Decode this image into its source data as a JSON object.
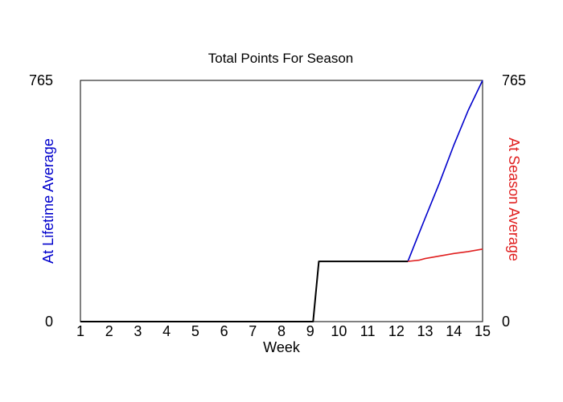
{
  "chart_data": {
    "type": "line",
    "title": "Total Points For Season",
    "xlabel": "Week",
    "ylabel_left": "At Lifetime Average",
    "ylabel_right": "At Season Average",
    "xlim": [
      1,
      15
    ],
    "ylim": [
      0,
      765
    ],
    "x_ticks": [
      "1",
      "2",
      "3",
      "4",
      "5",
      "6",
      "7",
      "8",
      "9",
      "10",
      "11",
      "12",
      "13",
      "14",
      "15"
    ],
    "y_ticks_left": [
      "0",
      "765"
    ],
    "y_ticks_right": [
      "0",
      "765"
    ],
    "grid": false,
    "colors": {
      "left_label": "#0000cc",
      "right_label": "#e02020",
      "actual": "#000000",
      "lifetime": "#0000cc",
      "season": "#e02020"
    },
    "series": [
      {
        "key": "actual",
        "x": [
          1,
          9.1,
          9.3,
          12.4
        ],
        "y": [
          0,
          0,
          191,
          191
        ]
      },
      {
        "key": "lifetime",
        "x": [
          12.4,
          12.7,
          13.0,
          13.5,
          14.0,
          14.5,
          15.0
        ],
        "y": [
          191,
          260,
          328,
          440,
          560,
          670,
          765
        ]
      },
      {
        "key": "season",
        "x": [
          12.4,
          12.8,
          13.0,
          13.5,
          14.0,
          14.5,
          15.0
        ],
        "y": [
          191,
          195,
          200,
          208,
          216,
          222,
          230
        ]
      }
    ]
  }
}
